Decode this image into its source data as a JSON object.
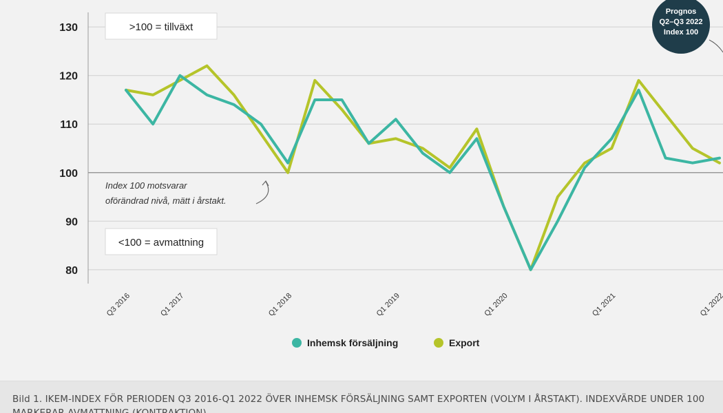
{
  "chart_data": {
    "type": "line",
    "x": [
      "Q3 2016",
      "Q4 2016",
      "Q1 2017",
      "Q2 2017",
      "Q3 2017",
      "Q4 2017",
      "Q1 2018",
      "Q2 2018",
      "Q3 2018",
      "Q4 2018",
      "Q1 2019",
      "Q2 2019",
      "Q3 2019",
      "Q4 2019",
      "Q1 2020",
      "Q2 2020",
      "Q3 2020",
      "Q4 2020",
      "Q1 2021",
      "Q2 2021",
      "Q3 2021",
      "Q4 2021",
      "Q1 2022"
    ],
    "series": [
      {
        "name": "Inhemsk försäljning",
        "color": "#3cb6a3",
        "values": [
          117,
          110,
          120,
          116,
          114,
          110,
          102,
          115,
          115,
          106,
          111,
          104,
          100,
          107,
          93,
          80,
          90,
          101,
          107,
          117,
          103,
          102,
          103
        ]
      },
      {
        "name": "Export",
        "color": "#b5c42a",
        "values": [
          117,
          116,
          119,
          122,
          116,
          108,
          100,
          119,
          113,
          106,
          107,
          105,
          101,
          109,
          93,
          80,
          95,
          102,
          105,
          119,
          112,
          105,
          102
        ]
      }
    ],
    "yticks": [
      80,
      90,
      100,
      110,
      120,
      130
    ],
    "ylim": [
      77,
      133
    ],
    "xtick_labels": [
      {
        "label": "Q3 2016",
        "x": "Q3 2016"
      },
      {
        "label": "Q1 2017",
        "x": "Q1 2017"
      },
      {
        "label": "Q1 2018",
        "x": "Q1 2018"
      },
      {
        "label": "Q1 2019",
        "x": "Q1 2019"
      },
      {
        "label": "Q1 2020",
        "x": "Q1 2020"
      },
      {
        "label": "Q1 2021",
        "x": "Q1 2021"
      },
      {
        "label": "Q1 2022",
        "x": "Q1 2022"
      }
    ],
    "reference_line": 100,
    "grid": true,
    "legend_position": "bottom",
    "annotations": {
      "growth_box": ">100 = tillväxt",
      "slowdown_box": "<100 = avmattning",
      "index_note_1": "Index 100 motsvarar",
      "index_note_2": "oförändrad nivå, mätt i årstakt.",
      "forecast_line_1": "Prognos",
      "forecast_line_2": "Q2–Q3 2022",
      "forecast_line_3": "Index 100"
    }
  },
  "colors": {
    "forecast_badge": "#1f3d4a",
    "grid": "#cfcfcf",
    "reference": "#9a9a9a"
  },
  "caption": {
    "text": "Bild 1. IKEM-INDEX FÖR PERIODEN Q3 2016-Q1 2022 ÖVER INHEMSK FÖRSÄLJNING SAMT EXPORTEN (VOLYM I ÅRSTAKT). INDEXVÄRDE UNDER 100 MARKERAR AVMATTNING (KONTRAKTION)"
  }
}
